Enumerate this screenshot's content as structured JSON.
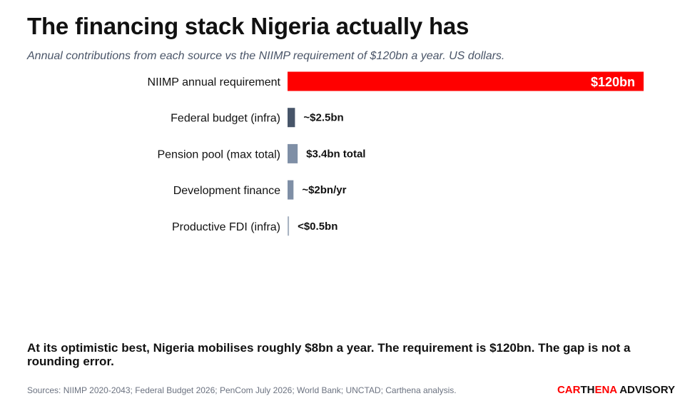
{
  "title": "The financing stack Nigeria actually has",
  "subtitle": "Annual contributions from each source vs the NIIMP requirement of $120bn a year. US dollars.",
  "chart_data": {
    "type": "bar",
    "orientation": "horizontal",
    "categories": [
      "NIIMP annual requirement",
      "Federal budget (infra)",
      "Pension pool (max total)",
      "Development finance",
      "Productive FDI (infra)"
    ],
    "values": [
      120,
      2.5,
      3.4,
      2,
      0.5
    ],
    "value_labels": [
      "$120bn",
      "~$2.5bn",
      "$3.4bn total",
      "~$2bn/yr",
      "<$0.5bn"
    ],
    "colors": [
      "#ff0000",
      "#475569",
      "#7f8fa6",
      "#7f8fa6",
      "#a9b4c2"
    ],
    "xlim": [
      0,
      120
    ],
    "grid": false
  },
  "conclusion": "At its optimistic best, Nigeria mobilises roughly $8bn a year. The requirement is $120bn. The gap is not a rounding error.",
  "sources": "Sources: NIIMP 2020-2043; Federal Budget 2026; PenCom July 2026; World Bank; UNCTAD; Carthena analysis.",
  "logo": {
    "part1": "CAR",
    "part2": "TH",
    "part3": "ENA",
    "part4": " ADVISORY"
  }
}
